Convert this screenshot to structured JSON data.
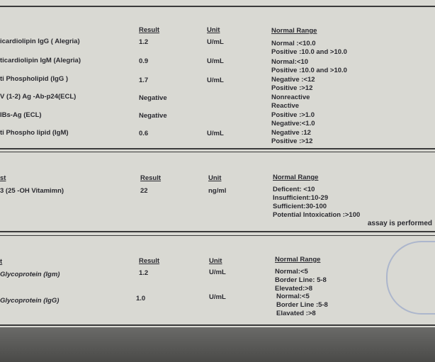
{
  "sections": [
    {
      "headers": {
        "test": "",
        "result": "Result",
        "unit": "Unit",
        "range": "Normal Range"
      },
      "rows": [
        {
          "test": "icardiolipin IgG ( Alegria)",
          "result": "1.2",
          "unit": "U/mL",
          "range": [
            "Normal :<10.0",
            "Positive :10.0 and >10.0"
          ]
        },
        {
          "test": "ticardiolipin IgM (Alegria)",
          "result": "0.9",
          "unit": "U/mL",
          "range": [
            "Normal:<10",
            "Positive :10.0 and >10.0"
          ]
        },
        {
          "test": "ti Phospholipid (IgG )",
          "result": "1.7",
          "unit": "U/mL",
          "range": [
            "Negative :<12",
            "Positive  :>12"
          ]
        },
        {
          "test": "V (1-2) Ag -Ab-p24(ECL)",
          "result": "Negative",
          "unit": "",
          "range": [
            "Nonreactive",
            "Reactive"
          ]
        },
        {
          "test": "IBs-Ag (ECL)",
          "result": "Negative",
          "unit": "",
          "range": [
            "Positive :>1.0",
            "Negative:<1.0"
          ]
        },
        {
          "test": "ti Phospho lipid (IgM)",
          "result": "0.6",
          "unit": "U/mL",
          "range": [
            "Negative :12",
            "Positive  :>12"
          ]
        }
      ]
    },
    {
      "headers": {
        "test": "st",
        "result": "Result",
        "unit": "Unit",
        "range": "Normal Range"
      },
      "rows": [
        {
          "test": "3 (25 -OH  Vitamimn)",
          "result": "22",
          "unit": "ng/ml",
          "range": [
            "Deficent: <10",
            "Insufficient:10-29",
            "Sufficient:30-100",
            "Potential Intoxication :>100"
          ]
        }
      ],
      "note": "assay is performed"
    },
    {
      "headers": {
        "test": "t",
        "result": "Result",
        "unit": "Unit",
        "range": "Normal Range"
      },
      "rows": [
        {
          "test": "Glycoprotein (Igm)",
          "result": "1.2",
          "unit": "U/mL",
          "range": [
            "Normal:<5",
            "Border Line: 5-8",
            "Elevated:>8"
          ]
        },
        {
          "test": "Glycoprotein (IgG)",
          "result": "1.0",
          "unit": "U/mL",
          "range": [
            "Normal:<5",
            "Border Line :5-8",
            "Elavated :>8"
          ]
        }
      ]
    }
  ]
}
